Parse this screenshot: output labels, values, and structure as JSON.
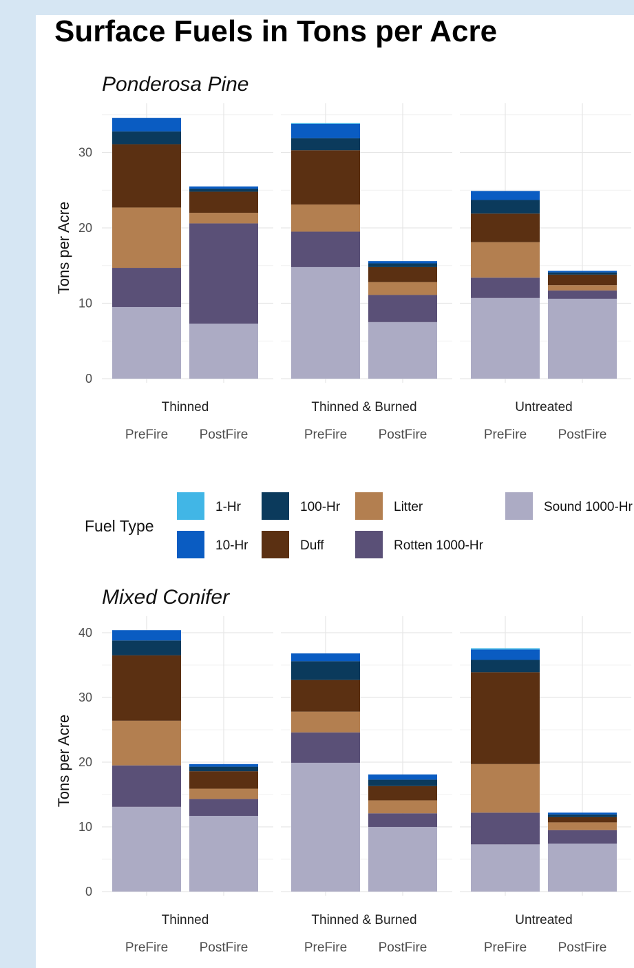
{
  "title": "Surface Fuels in Tons per Acre",
  "legend": {
    "title": "Fuel Type",
    "items": [
      {
        "key": "1hr",
        "label": "1-Hr",
        "color": "#41b6e6"
      },
      {
        "key": "10hr",
        "label": "10-Hr",
        "color": "#0a5cc2"
      },
      {
        "key": "100hr",
        "label": "100-Hr",
        "color": "#0b3a5c"
      },
      {
        "key": "duff",
        "label": "Duff",
        "color": "#5b3012"
      },
      {
        "key": "litter",
        "label": "Litter",
        "color": "#b37f50"
      },
      {
        "key": "rotten",
        "label": "Rotten 1000-Hr",
        "color": "#5a5077"
      },
      {
        "key": "sound",
        "label": "Sound 1000-Hr",
        "color": "#acabc4"
      }
    ]
  },
  "chart_data": [
    {
      "type": "bar",
      "stacked": true,
      "title": "Ponderosa Pine",
      "ylabel": "Tons per Acre",
      "ylim": [
        0,
        36
      ],
      "yticks": [
        0,
        10,
        20,
        30
      ],
      "groups": [
        "Thinned",
        "Thinned & Burned",
        "Untreated"
      ],
      "categories": [
        "PreFire",
        "PostFire"
      ],
      "stack_order": [
        "Sound 1000-Hr",
        "Rotten 1000-Hr",
        "Litter",
        "Duff",
        "100-Hr",
        "10-Hr",
        "1-Hr"
      ],
      "series": [
        {
          "name": "Sound 1000-Hr",
          "values": [
            [
              9.5,
              7.3
            ],
            [
              14.8,
              7.5
            ],
            [
              10.7,
              10.6
            ]
          ]
        },
        {
          "name": "Rotten 1000-Hr",
          "values": [
            [
              5.2,
              13.3
            ],
            [
              4.7,
              3.6
            ],
            [
              2.7,
              1.1
            ]
          ]
        },
        {
          "name": "Litter",
          "values": [
            [
              8.0,
              1.4
            ],
            [
              3.6,
              1.7
            ],
            [
              4.7,
              0.7
            ]
          ]
        },
        {
          "name": "Duff",
          "values": [
            [
              8.4,
              2.8
            ],
            [
              7.2,
              2.0
            ],
            [
              3.8,
              1.4
            ]
          ]
        },
        {
          "name": "100-Hr",
          "values": [
            [
              1.7,
              0.4
            ],
            [
              1.6,
              0.5
            ],
            [
              1.8,
              0.3
            ]
          ]
        },
        {
          "name": "10-Hr",
          "values": [
            [
              1.8,
              0.3
            ],
            [
              1.9,
              0.3
            ],
            [
              1.2,
              0.2
            ]
          ]
        },
        {
          "name": "1-Hr",
          "values": [
            [
              0.0,
              0.0
            ],
            [
              0.1,
              0.0
            ],
            [
              0.0,
              0.0
            ]
          ]
        }
      ]
    },
    {
      "type": "bar",
      "stacked": true,
      "title": "Mixed Conifer",
      "ylabel": "Tons per Acre",
      "ylim": [
        0,
        41
      ],
      "yticks": [
        0,
        10,
        20,
        30,
        40
      ],
      "groups": [
        "Thinned",
        "Thinned & Burned",
        "Untreated"
      ],
      "categories": [
        "PreFire",
        "PostFire"
      ],
      "stack_order": [
        "Sound 1000-Hr",
        "Rotten 1000-Hr",
        "Litter",
        "Duff",
        "100-Hr",
        "10-Hr",
        "1-Hr"
      ],
      "series": [
        {
          "name": "Sound 1000-Hr",
          "values": [
            [
              13.1,
              11.7
            ],
            [
              19.9,
              10.0
            ],
            [
              7.3,
              7.4
            ]
          ]
        },
        {
          "name": "Rotten 1000-Hr",
          "values": [
            [
              6.4,
              2.6
            ],
            [
              4.7,
              2.1
            ],
            [
              4.9,
              2.1
            ]
          ]
        },
        {
          "name": "Litter",
          "values": [
            [
              6.9,
              1.6
            ],
            [
              3.2,
              2.0
            ],
            [
              7.5,
              1.2
            ]
          ]
        },
        {
          "name": "Duff",
          "values": [
            [
              10.1,
              2.7
            ],
            [
              4.9,
              2.2
            ],
            [
              14.2,
              0.8
            ]
          ]
        },
        {
          "name": "100-Hr",
          "values": [
            [
              2.3,
              0.7
            ],
            [
              2.9,
              1.0
            ],
            [
              1.9,
              0.4
            ]
          ]
        },
        {
          "name": "10-Hr",
          "values": [
            [
              1.6,
              0.4
            ],
            [
              1.2,
              0.8
            ],
            [
              1.6,
              0.3
            ]
          ]
        },
        {
          "name": "1-Hr",
          "values": [
            [
              0.0,
              0.0
            ],
            [
              0.0,
              0.0
            ],
            [
              0.2,
              0.0
            ]
          ]
        }
      ]
    }
  ]
}
